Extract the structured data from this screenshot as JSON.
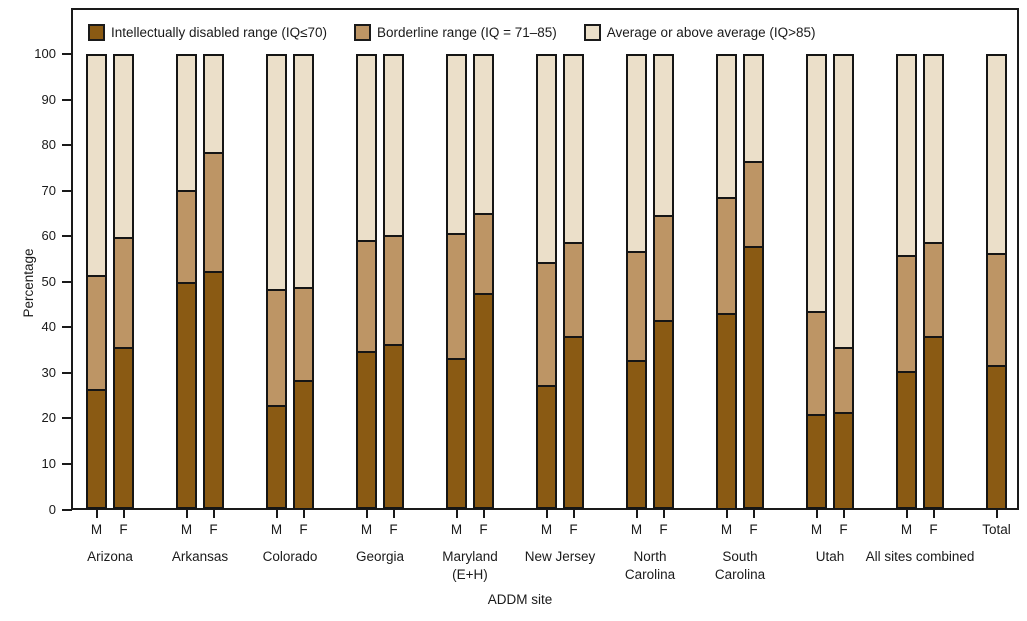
{
  "figure": {
    "y_axis_label": "Percentage",
    "x_axis_label": "ADDM site",
    "legend": [
      {
        "key": "id",
        "label": "Intellectually disabled range (IQ≤70)"
      },
      {
        "key": "borderline",
        "label": "Borderline range (IQ = 71–85)"
      },
      {
        "key": "average",
        "label": "Average or above average (IQ>85)"
      }
    ]
  },
  "chart_data": {
    "type": "bar",
    "stacked": true,
    "title": "",
    "xlabel": "ADDM site",
    "ylabel": "Percentage",
    "ylim": [
      0,
      100
    ],
    "yticks": [
      0,
      10,
      20,
      30,
      40,
      50,
      60,
      70,
      80,
      90,
      100
    ],
    "grid": false,
    "legend_position": "top-inside",
    "series_order_bottom_to_top": [
      "id",
      "borderline",
      "average"
    ],
    "series_labels": {
      "id": "Intellectually disabled range (IQ≤70)",
      "borderline": "Borderline range (IQ = 71–85)",
      "average": "Average or above average (IQ>85)"
    },
    "colors": {
      "id": "#8a5a13",
      "borderline": "#bd9565",
      "average": "#ebdfc9",
      "frame": "#1a1a1a"
    },
    "groups": [
      {
        "site": "Arizona",
        "site_lines": [
          "Arizona"
        ],
        "bars": [
          {
            "label": "M",
            "id": 26.0,
            "borderline": 25.0,
            "average": 49.0
          },
          {
            "label": "F",
            "id": 35.5,
            "borderline": 24.0,
            "average": 40.5
          }
        ]
      },
      {
        "site": "Arkansas",
        "site_lines": [
          "Arkansas"
        ],
        "bars": [
          {
            "label": "M",
            "id": 50.0,
            "borderline": 20.0,
            "average": 30.0
          },
          {
            "label": "F",
            "id": 52.5,
            "borderline": 26.0,
            "average": 21.5
          }
        ]
      },
      {
        "site": "Colorado",
        "site_lines": [
          "Colorado"
        ],
        "bars": [
          {
            "label": "M",
            "id": 22.5,
            "borderline": 25.5,
            "average": 52.0
          },
          {
            "label": "F",
            "id": 28.0,
            "borderline": 20.5,
            "average": 51.5
          }
        ]
      },
      {
        "site": "Georgia",
        "site_lines": [
          "Georgia"
        ],
        "bars": [
          {
            "label": "M",
            "id": 34.5,
            "borderline": 24.5,
            "average": 41.0
          },
          {
            "label": "F",
            "id": 36.0,
            "borderline": 24.0,
            "average": 40.0
          }
        ]
      },
      {
        "site": "Maryland (E+H)",
        "site_lines": [
          "Maryland",
          "(E+H)"
        ],
        "bars": [
          {
            "label": "M",
            "id": 33.0,
            "borderline": 27.5,
            "average": 39.5
          },
          {
            "label": "F",
            "id": 47.5,
            "borderline": 17.5,
            "average": 35.0
          }
        ]
      },
      {
        "site": "New Jersey",
        "site_lines": [
          "New Jersey"
        ],
        "bars": [
          {
            "label": "M",
            "id": 27.0,
            "borderline": 27.0,
            "average": 46.0
          },
          {
            "label": "F",
            "id": 38.0,
            "borderline": 20.5,
            "average": 41.5
          }
        ]
      },
      {
        "site": "North Carolina",
        "site_lines": [
          "North",
          "Carolina"
        ],
        "bars": [
          {
            "label": "M",
            "id": 32.5,
            "borderline": 24.0,
            "average": 43.5
          },
          {
            "label": "F",
            "id": 41.5,
            "borderline": 23.0,
            "average": 35.5
          }
        ]
      },
      {
        "site": "South Carolina",
        "site_lines": [
          "South",
          "Carolina"
        ],
        "bars": [
          {
            "label": "M",
            "id": 43.0,
            "borderline": 25.5,
            "average": 31.5
          },
          {
            "label": "F",
            "id": 58.0,
            "borderline": 18.5,
            "average": 23.5
          }
        ]
      },
      {
        "site": "Utah",
        "site_lines": [
          "Utah"
        ],
        "bars": [
          {
            "label": "M",
            "id": 20.5,
            "borderline": 22.5,
            "average": 57.0
          },
          {
            "label": "F",
            "id": 21.0,
            "borderline": 14.0,
            "average": 65.0
          }
        ]
      },
      {
        "site": "All sites combined",
        "site_lines": [
          "All sites combined"
        ],
        "bars": [
          {
            "label": "M",
            "id": 30.0,
            "borderline": 25.5,
            "average": 44.5
          },
          {
            "label": "F",
            "id": 38.0,
            "borderline": 20.5,
            "average": 41.5
          }
        ]
      },
      {
        "site": "Total",
        "site_lines": [],
        "bars": [
          {
            "label": "Total",
            "id": 31.5,
            "borderline": 24.5,
            "average": 44.0
          }
        ]
      }
    ]
  }
}
